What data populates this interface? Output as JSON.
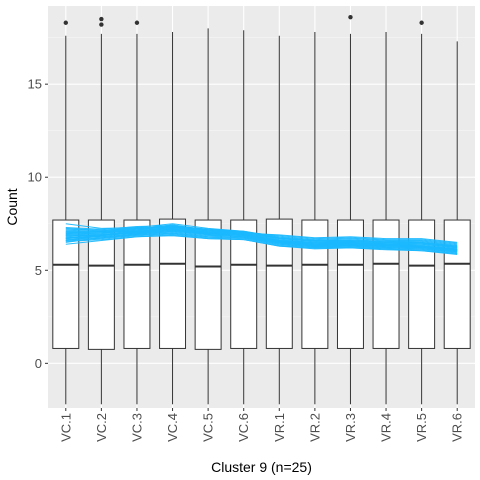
{
  "chart_data": {
    "type": "box",
    "xlabel": "Cluster 9 (n=25)",
    "ylabel": "Count",
    "categories": [
      "VC.1",
      "VC.2",
      "VC.3",
      "VC.4",
      "VC.5",
      "VC.6",
      "VR.1",
      "VR.2",
      "VR.3",
      "VR.4",
      "VR.5",
      "VR.6"
    ],
    "y_ticks": [
      0,
      5,
      10,
      15
    ],
    "ylim": [
      -2.4,
      19.2
    ],
    "grid": true,
    "boxes": [
      {
        "low": -2.2,
        "q1": 0.8,
        "median": 5.3,
        "q3": 7.7,
        "high": 17.6,
        "outliers": [
          18.3
        ]
      },
      {
        "low": -2.2,
        "q1": 0.75,
        "median": 5.25,
        "q3": 7.7,
        "high": 17.7,
        "outliers": [
          18.2,
          18.5
        ]
      },
      {
        "low": -2.2,
        "q1": 0.8,
        "median": 5.3,
        "q3": 7.7,
        "high": 17.7,
        "outliers": [
          18.3
        ]
      },
      {
        "low": -2.2,
        "q1": 0.8,
        "median": 5.35,
        "q3": 7.75,
        "high": 17.8,
        "outliers": []
      },
      {
        "low": -2.2,
        "q1": 0.75,
        "median": 5.2,
        "q3": 7.7,
        "high": 18.0,
        "outliers": []
      },
      {
        "low": -2.2,
        "q1": 0.8,
        "median": 5.3,
        "q3": 7.7,
        "high": 17.9,
        "outliers": []
      },
      {
        "low": -2.2,
        "q1": 0.8,
        "median": 5.25,
        "q3": 7.75,
        "high": 17.6,
        "outliers": []
      },
      {
        "low": -2.2,
        "q1": 0.8,
        "median": 5.3,
        "q3": 7.7,
        "high": 17.8,
        "outliers": []
      },
      {
        "low": -2.2,
        "q1": 0.8,
        "median": 5.3,
        "q3": 7.7,
        "high": 17.7,
        "outliers": [
          18.6
        ]
      },
      {
        "low": -2.2,
        "q1": 0.8,
        "median": 5.35,
        "q3": 7.7,
        "high": 17.8,
        "outliers": []
      },
      {
        "low": -2.2,
        "q1": 0.8,
        "median": 5.25,
        "q3": 7.7,
        "high": 17.7,
        "outliers": [
          18.3
        ]
      },
      {
        "low": -2.2,
        "q1": 0.8,
        "median": 5.35,
        "q3": 7.7,
        "high": 17.3,
        "outliers": []
      }
    ],
    "profiles": [
      [
        6.6,
        6.7,
        6.85,
        6.95,
        6.75,
        6.7,
        6.35,
        6.2,
        6.25,
        6.15,
        6.1,
        5.9
      ],
      [
        6.7,
        6.8,
        6.95,
        7.05,
        6.85,
        6.8,
        6.45,
        6.3,
        6.35,
        6.25,
        6.2,
        6.0
      ],
      [
        6.8,
        6.9,
        7.0,
        7.1,
        6.95,
        6.85,
        6.5,
        6.35,
        6.4,
        6.3,
        6.25,
        6.05
      ],
      [
        6.9,
        6.95,
        7.05,
        7.15,
        7.0,
        6.9,
        6.55,
        6.4,
        6.45,
        6.35,
        6.3,
        6.1
      ],
      [
        7.0,
        7.05,
        7.1,
        7.2,
        7.05,
        6.95,
        6.6,
        6.45,
        6.5,
        6.4,
        6.35,
        6.15
      ],
      [
        6.5,
        6.75,
        6.9,
        7.0,
        6.8,
        6.75,
        6.4,
        6.25,
        6.3,
        6.2,
        6.15,
        6.0
      ],
      [
        6.6,
        6.85,
        7.0,
        7.25,
        6.9,
        6.8,
        6.5,
        6.3,
        6.35,
        6.3,
        6.25,
        6.05
      ],
      [
        6.75,
        6.85,
        7.05,
        7.35,
        7.0,
        6.9,
        6.55,
        6.35,
        6.45,
        6.35,
        6.3,
        6.1
      ],
      [
        6.85,
        6.9,
        7.1,
        7.3,
        7.05,
        6.95,
        6.6,
        6.4,
        6.5,
        6.4,
        6.4,
        6.2
      ],
      [
        6.95,
        7.0,
        7.15,
        7.4,
        7.1,
        7.0,
        6.65,
        6.5,
        6.55,
        6.45,
        6.45,
        6.25
      ],
      [
        7.05,
        7.05,
        7.2,
        7.45,
        7.15,
        7.05,
        6.7,
        6.55,
        6.6,
        6.5,
        6.5,
        6.3
      ],
      [
        7.1,
        7.1,
        7.25,
        7.35,
        7.2,
        7.1,
        6.75,
        6.6,
        6.65,
        6.55,
        6.55,
        6.35
      ],
      [
        7.2,
        7.15,
        7.3,
        7.5,
        7.25,
        7.1,
        6.8,
        6.65,
        6.7,
        6.6,
        6.6,
        6.4
      ],
      [
        7.3,
        7.2,
        7.35,
        7.4,
        7.2,
        7.05,
        6.85,
        6.7,
        6.75,
        6.65,
        6.65,
        6.45
      ],
      [
        7.5,
        7.25,
        7.3,
        7.3,
        7.15,
        7.0,
        6.9,
        6.75,
        6.8,
        6.7,
        6.7,
        6.5
      ],
      [
        6.4,
        6.6,
        6.8,
        6.9,
        6.7,
        6.65,
        6.3,
        6.15,
        6.2,
        6.1,
        6.05,
        5.85
      ],
      [
        6.55,
        6.65,
        6.8,
        6.85,
        6.7,
        6.65,
        6.3,
        6.2,
        6.2,
        6.15,
        6.05,
        5.9
      ],
      [
        6.65,
        6.75,
        6.9,
        7.0,
        6.8,
        6.75,
        6.4,
        6.25,
        6.3,
        6.2,
        6.15,
        5.95
      ],
      [
        6.75,
        6.8,
        6.95,
        7.1,
        6.9,
        6.8,
        6.45,
        6.3,
        6.35,
        6.25,
        6.2,
        6.05
      ],
      [
        6.85,
        6.9,
        7.0,
        7.15,
        6.95,
        6.85,
        6.5,
        6.4,
        6.4,
        6.35,
        6.25,
        6.1
      ],
      [
        6.95,
        7.0,
        7.1,
        7.2,
        7.0,
        6.9,
        6.55,
        6.45,
        6.45,
        6.4,
        6.3,
        6.15
      ],
      [
        7.05,
        7.05,
        7.15,
        7.25,
        7.05,
        6.95,
        6.6,
        6.5,
        6.5,
        6.45,
        6.4,
        6.2
      ],
      [
        7.15,
        7.1,
        7.2,
        7.3,
        7.1,
        7.0,
        6.7,
        6.55,
        6.55,
        6.5,
        6.45,
        6.25
      ],
      [
        7.25,
        7.15,
        7.25,
        7.35,
        7.15,
        7.05,
        6.75,
        6.6,
        6.6,
        6.55,
        6.5,
        6.3
      ],
      [
        6.7,
        6.9,
        7.05,
        7.2,
        7.0,
        6.9,
        6.5,
        6.35,
        6.4,
        6.35,
        6.3,
        6.1
      ]
    ],
    "colors": {
      "panel": "#ebebeb",
      "grid_major": "#ffffff",
      "grid_minor": "#f5f5f5",
      "box_fill": "#ffffff",
      "box_stroke": "#333333",
      "profile": "#1ab8ff",
      "outlier": "#333333"
    }
  }
}
